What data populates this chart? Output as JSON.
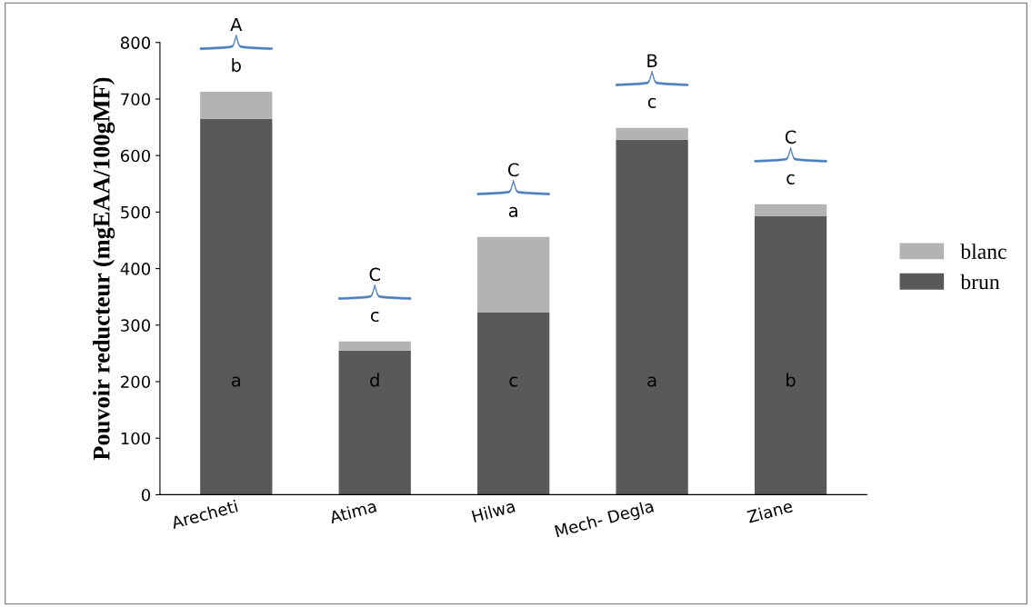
{
  "chart_data": {
    "type": "bar",
    "stacked": true,
    "ylabel": "Pouvoir reducteur (mgEAA/100gMF)",
    "categories": [
      "Arecheti",
      "Atima",
      "Hilwa",
      "Mech- Degla",
      "Ziane"
    ],
    "series": [
      {
        "name": "brun",
        "color": "#595959",
        "values": [
          665,
          255,
          323,
          628,
          493
        ]
      },
      {
        "name": "blanc",
        "color": "#b3b3b3",
        "values": [
          48,
          16,
          133,
          21,
          21
        ]
      }
    ],
    "ylim": [
      0,
      800
    ],
    "yticks": [
      0,
      100,
      200,
      300,
      400,
      500,
      600,
      700,
      800
    ],
    "grid": false,
    "legend": "right",
    "annotations": [
      "A",
      "b",
      "a",
      "C",
      "c",
      "d",
      "C",
      "a",
      "c",
      "B",
      "c",
      "a",
      "C",
      "c",
      "b"
    ]
  }
}
